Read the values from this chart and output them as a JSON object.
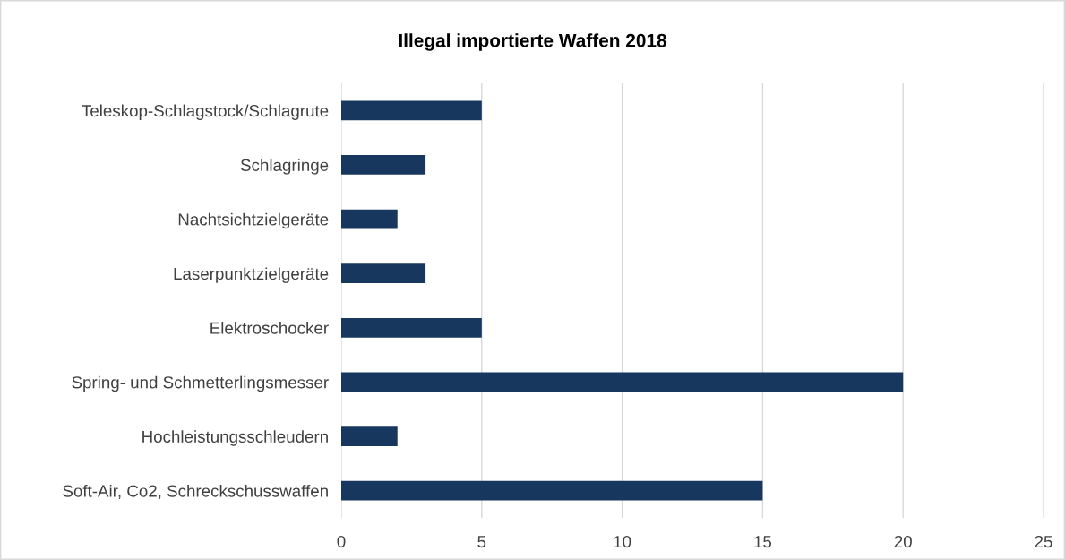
{
  "chart_data": {
    "type": "bar",
    "orientation": "horizontal",
    "title": "Illegal importierte Waffen 2018",
    "categories": [
      "Teleskop-Schlagstock/Schlagrute",
      "Schlagringe",
      "Nachtsichtzielgeräte",
      "Laserpunktzielgeräte",
      "Elektroschocker",
      "Spring- und Schmetterlingsmesser",
      "Hochleistungsschleudern",
      "Soft-Air, Co2, Schreckschusswaffen"
    ],
    "values": [
      5,
      3,
      2,
      3,
      5,
      20,
      2,
      15
    ],
    "color": "#17375e",
    "xlim": [
      0,
      25
    ],
    "xticks": [
      0,
      5,
      10,
      15,
      20,
      25
    ],
    "grid": "x",
    "legend": false
  }
}
